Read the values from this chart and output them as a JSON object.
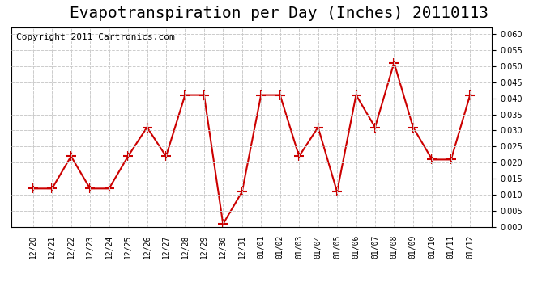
{
  "title": "Evapotranspiration per Day (Inches) 20110113",
  "copyright_text": "Copyright 2011 Cartronics.com",
  "x_labels": [
    "12/20",
    "12/21",
    "12/22",
    "12/23",
    "12/24",
    "12/25",
    "12/26",
    "12/27",
    "12/28",
    "12/29",
    "12/30",
    "12/31",
    "01/01",
    "01/02",
    "01/03",
    "01/04",
    "01/05",
    "01/06",
    "01/07",
    "01/08",
    "01/09",
    "01/10",
    "01/11",
    "01/12"
  ],
  "y_values": [
    0.012,
    0.012,
    0.022,
    0.012,
    0.012,
    0.022,
    0.031,
    0.022,
    0.041,
    0.041,
    0.001,
    0.011,
    0.041,
    0.041,
    0.022,
    0.031,
    0.011,
    0.041,
    0.031,
    0.051,
    0.031,
    0.021,
    0.021,
    0.041
  ],
  "line_color": "#cc0000",
  "marker": "+",
  "marker_size": 8,
  "ylim": [
    0.0,
    0.062
  ],
  "ytick_step": 0.005,
  "bg_color": "#ffffff",
  "grid_color": "#cccccc",
  "title_fontsize": 14,
  "copyright_fontsize": 8
}
